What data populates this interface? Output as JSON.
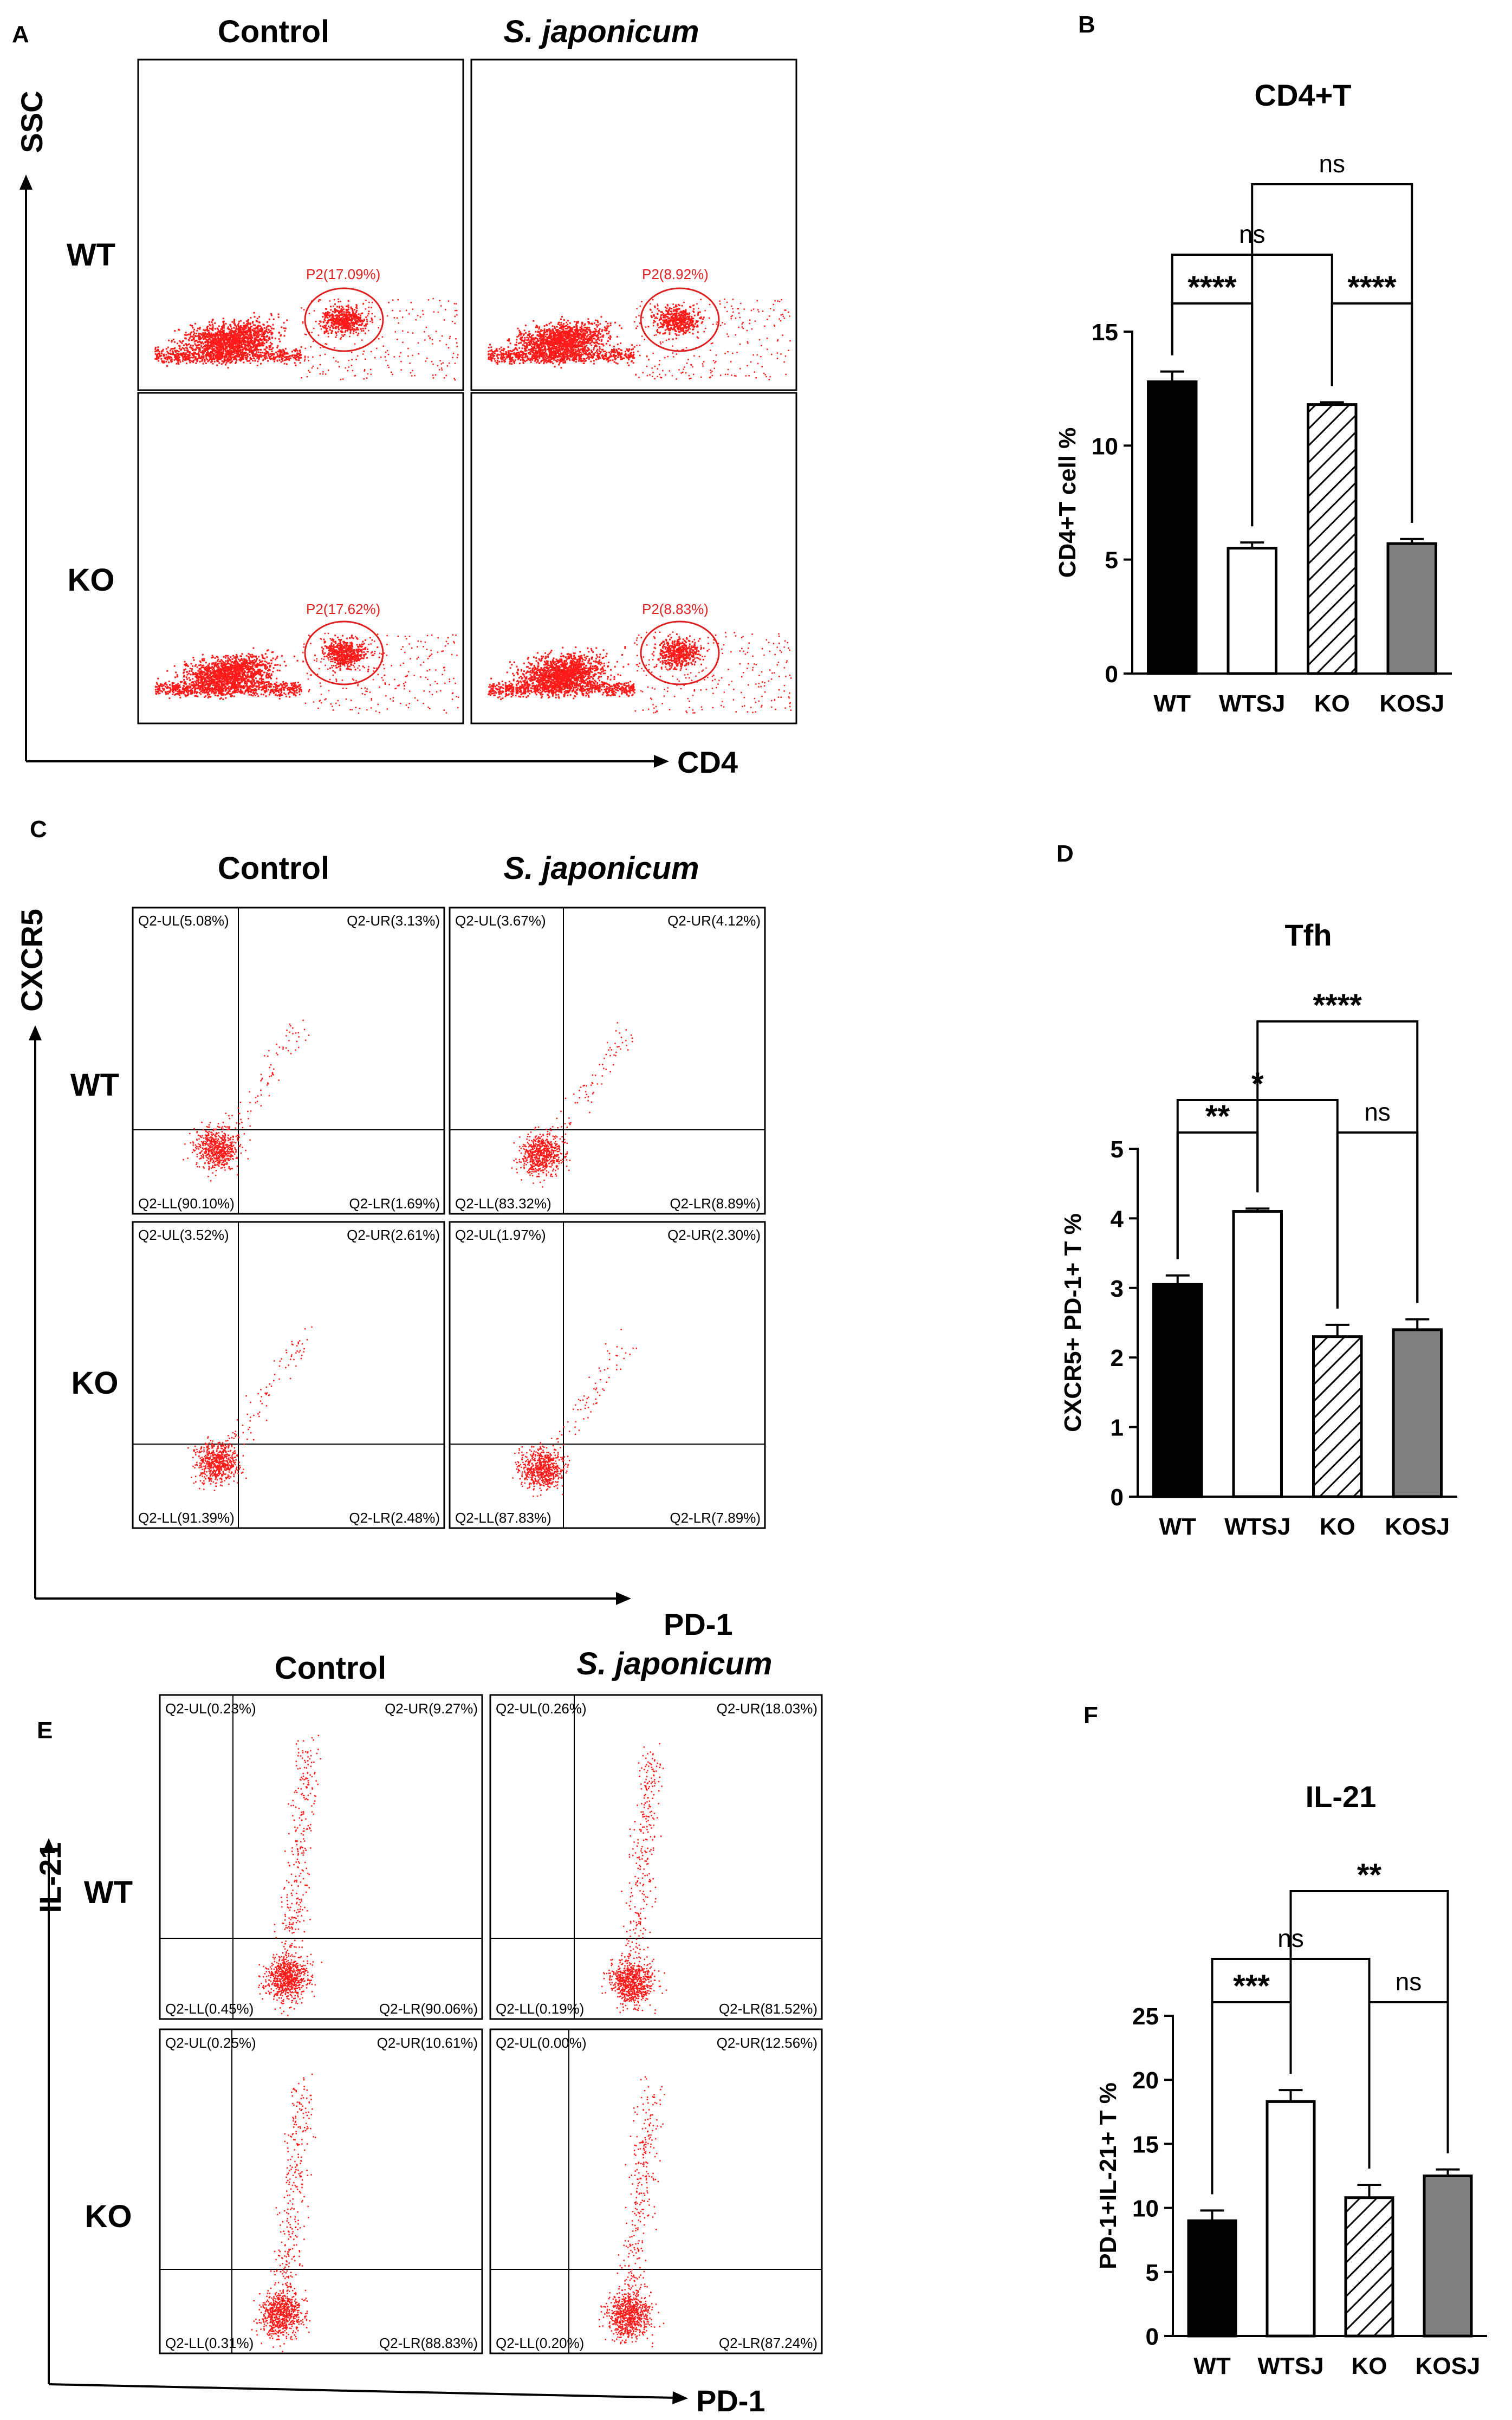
{
  "colors": {
    "dot": "#ff1a1a",
    "gate": "#e02020",
    "axis": "#000000",
    "wt": "#000000",
    "wtsj": "#ffffff",
    "ko": "#ffffff",
    "kosj": "#808080"
  },
  "panels": {
    "A": {
      "letter": "A",
      "col_labels": [
        "Control",
        "S. japonicum"
      ],
      "row_labels": [
        "WT",
        "KO"
      ],
      "x_axis": "CD4",
      "y_axis": "SSC",
      "gates": [
        [
          "P2(17.09%)",
          "P2(8.92%)"
        ],
        [
          "P2(17.62%)",
          "P2(8.83%)"
        ]
      ]
    },
    "C": {
      "letter": "C",
      "col_labels": [
        "Control",
        "S. japonicum"
      ],
      "row_labels": [
        "WT",
        "KO"
      ],
      "x_axis": "PD-1",
      "y_axis": "CXCR5",
      "quadrants": [
        [
          {
            "ul": "Q2-UL(5.08%)",
            "ur": "Q2-UR(3.13%)",
            "ll": "Q2-LL(90.10%)",
            "lr": "Q2-LR(1.69%)"
          },
          {
            "ul": "Q2-UL(3.67%)",
            "ur": "Q2-UR(4.12%)",
            "ll": "Q2-LL(83.32%)",
            "lr": "Q2-LR(8.89%)"
          }
        ],
        [
          {
            "ul": "Q2-UL(3.52%)",
            "ur": "Q2-UR(2.61%)",
            "ll": "Q2-LL(91.39%)",
            "lr": "Q2-LR(2.48%)"
          },
          {
            "ul": "Q2-UL(1.97%)",
            "ur": "Q2-UR(2.30%)",
            "ll": "Q2-LL(87.83%)",
            "lr": "Q2-LR(7.89%)"
          }
        ]
      ]
    },
    "E": {
      "letter": "E",
      "col_labels": [
        "Control",
        "S. japonicum"
      ],
      "row_labels": [
        "WT",
        "KO"
      ],
      "x_axis": "PD-1",
      "y_axis": "IL-21",
      "quadrants": [
        [
          {
            "ul": "Q2-UL(0.23%)",
            "ur": "Q2-UR(9.27%)",
            "ll": "Q2-LL(0.45%)",
            "lr": "Q2-LR(90.06%)"
          },
          {
            "ul": "Q2-UL(0.26%)",
            "ur": "Q2-UR(18.03%)",
            "ll": "Q2-LL(0.19%)",
            "lr": "Q2-LR(81.52%)"
          }
        ],
        [
          {
            "ul": "Q2-UL(0.25%)",
            "ur": "Q2-UR(10.61%)",
            "ll": "Q2-LL(0.31%)",
            "lr": "Q2-LR(88.83%)"
          },
          {
            "ul": "Q2-UL(0.00%)",
            "ur": "Q2-UR(12.56%)",
            "ll": "Q2-LL(0.20%)",
            "lr": "Q2-LR(87.24%)"
          }
        ]
      ]
    }
  },
  "chart_data": [
    {
      "panel": "B",
      "type": "bar",
      "title": "CD4+T",
      "ylabel": "CD4+T cell %",
      "categories": [
        "WT",
        "WTSJ",
        "KO",
        "KOSJ"
      ],
      "values": [
        12.8,
        5.5,
        11.8,
        5.7
      ],
      "errors": [
        0.45,
        0.25,
        0.1,
        0.2
      ],
      "ylim": [
        0,
        15
      ],
      "yticks": [
        0,
        5,
        10,
        15
      ],
      "fills": [
        "solid-black",
        "white",
        "hatched",
        "gray"
      ],
      "comparisons": [
        {
          "from": "WT",
          "to": "WTSJ",
          "label": "****"
        },
        {
          "from": "KO",
          "to": "KOSJ",
          "label": "****"
        },
        {
          "from": "WT",
          "to": "KO",
          "label": "ns"
        },
        {
          "from": "WTSJ",
          "to": "KOSJ",
          "label": "ns"
        }
      ]
    },
    {
      "panel": "D",
      "type": "bar",
      "title": "Tfh",
      "ylabel": "CXCR5+ PD-1+ T %",
      "categories": [
        "WT",
        "WTSJ",
        "KO",
        "KOSJ"
      ],
      "values": [
        3.05,
        4.1,
        2.3,
        2.4
      ],
      "errors": [
        0.13,
        0.04,
        0.17,
        0.15
      ],
      "ylim": [
        0,
        5
      ],
      "yticks": [
        0,
        1,
        2,
        3,
        4,
        5
      ],
      "fills": [
        "solid-black",
        "white",
        "hatched",
        "gray"
      ],
      "comparisons": [
        {
          "from": "WT",
          "to": "WTSJ",
          "label": "**"
        },
        {
          "from": "KO",
          "to": "KOSJ",
          "label": "ns"
        },
        {
          "from": "WT",
          "to": "KO",
          "label": "*"
        },
        {
          "from": "WTSJ",
          "to": "KOSJ",
          "label": "****"
        }
      ]
    },
    {
      "panel": "F",
      "type": "bar",
      "title": "IL-21",
      "ylabel": "PD-1+IL-21+ T %",
      "categories": [
        "WT",
        "WTSJ",
        "KO",
        "KOSJ"
      ],
      "values": [
        9.0,
        18.3,
        10.8,
        12.5
      ],
      "errors": [
        0.8,
        0.9,
        1.0,
        0.5
      ],
      "ylim": [
        0,
        25
      ],
      "yticks": [
        0,
        5,
        10,
        15,
        20,
        25
      ],
      "fills": [
        "solid-black",
        "white",
        "hatched",
        "gray"
      ],
      "comparisons": [
        {
          "from": "WT",
          "to": "WTSJ",
          "label": "***"
        },
        {
          "from": "KO",
          "to": "KOSJ",
          "label": "ns"
        },
        {
          "from": "WT",
          "to": "KO",
          "label": "ns"
        },
        {
          "from": "WTSJ",
          "to": "KOSJ",
          "label": "**"
        }
      ]
    }
  ]
}
